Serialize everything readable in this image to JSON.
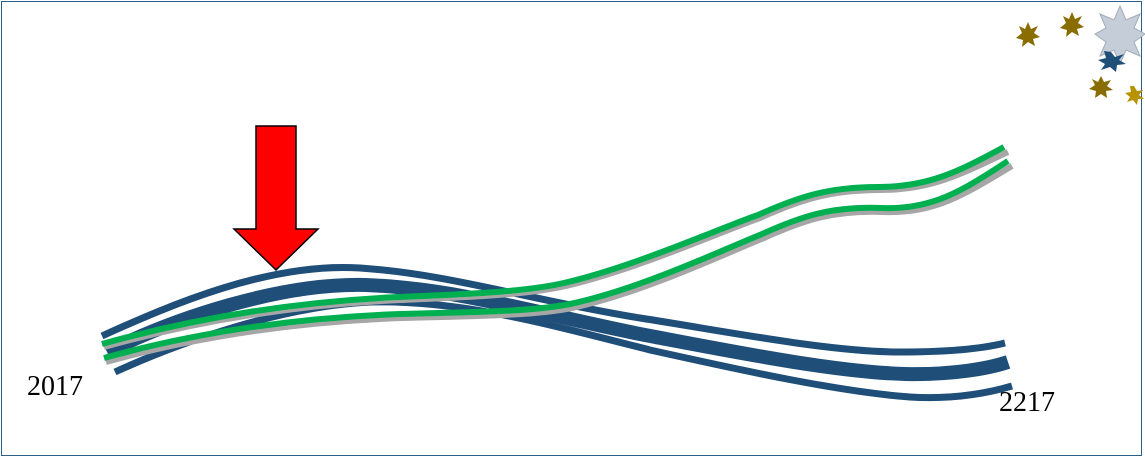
{
  "labels": {
    "start_year": "2017",
    "end_year": "2217"
  },
  "colors": {
    "frame_border": "#2a5f8a",
    "blue_track": "#1f4e79",
    "green_track": "#00b050",
    "grey_shadow": "#a6a6a6",
    "arrow_fill": "#ff0000",
    "arrow_stroke": "#000000",
    "burst_gold": "#8a6d00",
    "burst_blue": "#1f4e79",
    "burst_silver": "#b0bcc8"
  },
  "icons": {
    "arrow": "down-arrow-icon",
    "corner": "starburst-icon"
  }
}
